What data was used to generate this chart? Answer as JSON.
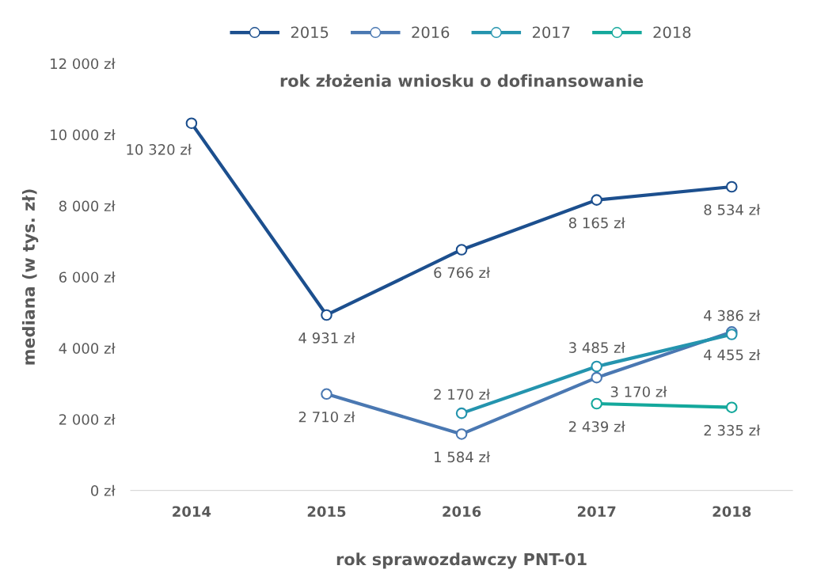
{
  "chart_data": {
    "type": "line",
    "title": "rok złożenia wniosku o dofinansowanie",
    "xlabel": "rok sprawozdawczy PNT-01",
    "ylabel": "mediana (w tys. zł)",
    "categories": [
      "2014",
      "2015",
      "2016",
      "2017",
      "2018"
    ],
    "series": [
      {
        "name": "2015",
        "color": "#1c4f8e",
        "values": [
          10320,
          4931,
          6766,
          8165,
          8534
        ],
        "value_labels": [
          "10 320 zł",
          "4 931 zł",
          "6 766 zł",
          "8 165 zł",
          "8 534 zł"
        ]
      },
      {
        "name": "2016",
        "color": "#4a78b2",
        "values": [
          null,
          2710,
          1584,
          3170,
          4455
        ],
        "value_labels": [
          null,
          "2 710 zł",
          "1 584 zł",
          "3 170 zł",
          "4 455 zł"
        ]
      },
      {
        "name": "2017",
        "color": "#2494ae",
        "values": [
          null,
          null,
          2170,
          3485,
          4386
        ],
        "value_labels": [
          null,
          null,
          "2 170 zł",
          "3 485 zł",
          "4 386 zł"
        ]
      },
      {
        "name": "2018",
        "color": "#14a89c",
        "values": [
          null,
          null,
          null,
          2439,
          2335
        ],
        "value_labels": [
          null,
          null,
          null,
          "2 439 zł",
          "2 335 zł"
        ]
      }
    ],
    "ylim": [
      0,
      12000
    ],
    "yticks": [
      {
        "value": 0,
        "label": "0 zł"
      },
      {
        "value": 2000,
        "label": "2 000 zł"
      },
      {
        "value": 4000,
        "label": "4 000 zł"
      },
      {
        "value": 6000,
        "label": "6 000 zł"
      },
      {
        "value": 8000,
        "label": "8 000 zł"
      },
      {
        "value": 10000,
        "label": "10 000 zł"
      },
      {
        "value": 12000,
        "label": "12 000 zł"
      }
    ],
    "grid": false,
    "legend": "top",
    "marker": "circle",
    "line_style": "solid"
  }
}
